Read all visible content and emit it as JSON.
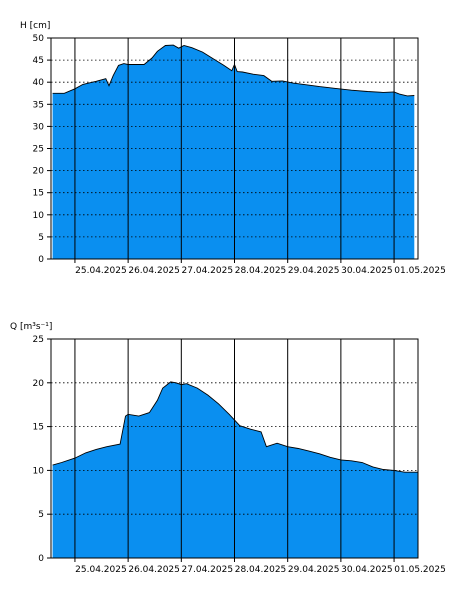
{
  "colors": {
    "fill": "#0a8ff0",
    "outline": "#000000",
    "grid": "#000000",
    "background": "#ffffff"
  },
  "chart_data": [
    {
      "type": "area",
      "ylabel": "H [cm]",
      "ylim": [
        0,
        50
      ],
      "yticks": [
        0,
        5,
        10,
        15,
        20,
        25,
        30,
        35,
        40,
        45,
        50
      ],
      "xlim": [
        -0.45,
        6.45
      ],
      "xtick_positions": [
        0,
        1,
        2,
        3,
        4,
        5,
        6
      ],
      "xtick_labels": [
        "25.04.2025",
        "26.04.2025",
        "27.04.2025",
        "28.04.2025",
        "29.04.2025",
        "30.04.2025",
        "01.05.2025"
      ],
      "grid": {
        "vertical": "solid at midnight",
        "horizontal": "dotted"
      },
      "x": [
        -0.42,
        -0.2,
        0.0,
        0.15,
        0.4,
        0.58,
        0.64,
        0.72,
        0.82,
        0.92,
        1.0,
        1.3,
        1.45,
        1.55,
        1.7,
        1.85,
        1.95,
        2.05,
        2.2,
        2.4,
        2.6,
        2.8,
        2.95,
        3.0,
        3.05,
        3.15,
        3.35,
        3.55,
        3.7,
        3.9,
        4.1,
        4.3,
        4.6,
        4.9,
        5.2,
        5.5,
        5.8,
        6.0,
        6.1,
        6.25,
        6.38
      ],
      "values": [
        37.5,
        37.5,
        38.5,
        39.5,
        40.2,
        40.8,
        39.2,
        41.5,
        43.8,
        44.2,
        44.0,
        44.0,
        45.5,
        47.0,
        48.3,
        48.4,
        47.7,
        48.3,
        47.8,
        46.8,
        45.3,
        43.8,
        42.6,
        44.0,
        42.4,
        42.3,
        41.8,
        41.5,
        40.2,
        40.3,
        39.8,
        39.5,
        39.0,
        38.6,
        38.2,
        37.9,
        37.7,
        37.8,
        37.3,
        36.9,
        37.0
      ]
    },
    {
      "type": "area",
      "ylabel": "Q [m³s⁻¹]",
      "ylim": [
        0,
        25
      ],
      "yticks": [
        0,
        5,
        10,
        15,
        20,
        25
      ],
      "xlim": [
        -0.45,
        6.45
      ],
      "xtick_positions": [
        0,
        1,
        2,
        3,
        4,
        5,
        6
      ],
      "xtick_labels": [
        "25.04.2025",
        "26.04.2025",
        "27.04.2025",
        "28.04.2025",
        "29.04.2025",
        "30.04.2025",
        "01.05.2025"
      ],
      "grid": {
        "vertical": "solid at midnight",
        "horizontal": "dotted"
      },
      "x": [
        -0.42,
        -0.25,
        0.0,
        0.2,
        0.4,
        0.6,
        0.85,
        0.95,
        1.0,
        1.2,
        1.4,
        1.55,
        1.65,
        1.8,
        1.9,
        2.0,
        2.1,
        2.3,
        2.5,
        2.7,
        2.9,
        3.1,
        3.3,
        3.5,
        3.6,
        3.8,
        4.0,
        4.2,
        4.4,
        4.6,
        4.8,
        5.0,
        5.2,
        5.4,
        5.6,
        5.8,
        6.0,
        6.2,
        6.45
      ],
      "values": [
        10.6,
        10.9,
        11.4,
        12.0,
        12.4,
        12.7,
        13.0,
        16.2,
        16.4,
        16.2,
        16.6,
        18.0,
        19.4,
        20.1,
        20.0,
        19.8,
        19.9,
        19.4,
        18.6,
        17.6,
        16.4,
        15.1,
        14.7,
        14.4,
        12.7,
        13.1,
        12.7,
        12.5,
        12.2,
        11.9,
        11.5,
        11.2,
        11.1,
        10.9,
        10.4,
        10.1,
        10.0,
        9.8,
        9.8
      ]
    }
  ]
}
